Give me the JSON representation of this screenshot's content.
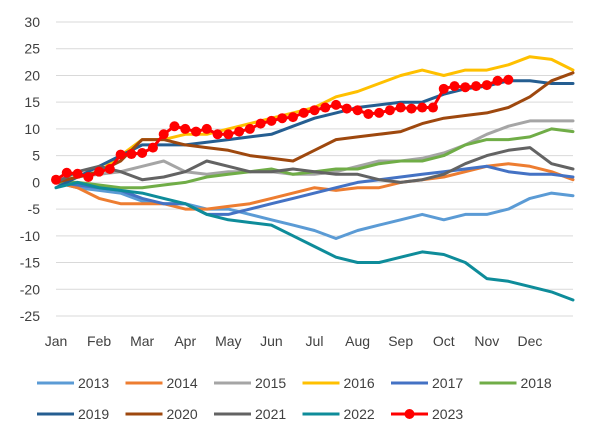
{
  "chart_data": {
    "type": "line",
    "title": "",
    "xlabel": "",
    "ylabel": "",
    "x_ticks": [
      "Jan",
      "Feb",
      "Mar",
      "Apr",
      "May",
      "Jun",
      "Jul",
      "Aug",
      "Sep",
      "Oct",
      "Nov",
      "Dec"
    ],
    "x_range": [
      0,
      12
    ],
    "ylim": [
      -25,
      30
    ],
    "y_ticks": [
      30,
      25,
      20,
      15,
      10,
      5,
      0,
      -5,
      -10,
      -15,
      -20,
      -25
    ],
    "grid": "horizontal",
    "legend_position": "bottom",
    "series": [
      {
        "name": "2013",
        "color": "#5B9BD5",
        "marker": false,
        "points": [
          [
            0,
            0
          ],
          [
            0.5,
            -1
          ],
          [
            1,
            -1.5
          ],
          [
            1.5,
            -2
          ],
          [
            2,
            -3.5
          ],
          [
            2.5,
            -4
          ],
          [
            3,
            -4
          ],
          [
            3.5,
            -5
          ],
          [
            4,
            -5
          ],
          [
            4.5,
            -6
          ],
          [
            5,
            -7
          ],
          [
            5.5,
            -8
          ],
          [
            6,
            -9
          ],
          [
            6.5,
            -10.5
          ],
          [
            7,
            -9
          ],
          [
            7.5,
            -8
          ],
          [
            8,
            -7
          ],
          [
            8.5,
            -6
          ],
          [
            9,
            -7
          ],
          [
            9.5,
            -6
          ],
          [
            10,
            -6
          ],
          [
            10.5,
            -5
          ],
          [
            11,
            -3
          ],
          [
            11.5,
            -2
          ],
          [
            12,
            -2.5
          ]
        ]
      },
      {
        "name": "2014",
        "color": "#ED7D31",
        "marker": false,
        "points": [
          [
            0,
            0
          ],
          [
            0.5,
            -1
          ],
          [
            1,
            -3
          ],
          [
            1.5,
            -4
          ],
          [
            2,
            -4
          ],
          [
            2.5,
            -4
          ],
          [
            3,
            -5
          ],
          [
            3.5,
            -5
          ],
          [
            4,
            -4.5
          ],
          [
            4.5,
            -4
          ],
          [
            5,
            -3
          ],
          [
            5.5,
            -2
          ],
          [
            6,
            -1
          ],
          [
            6.5,
            -1.5
          ],
          [
            7,
            -1
          ],
          [
            7.5,
            -1
          ],
          [
            8,
            0
          ],
          [
            8.5,
            0.5
          ],
          [
            9,
            1
          ],
          [
            9.5,
            2
          ],
          [
            10,
            3
          ],
          [
            10.5,
            3.5
          ],
          [
            11,
            3
          ],
          [
            11.5,
            2
          ],
          [
            12,
            0.5
          ]
        ]
      },
      {
        "name": "2015",
        "color": "#A5A5A5",
        "marker": false,
        "points": [
          [
            0,
            0
          ],
          [
            0.5,
            1
          ],
          [
            1,
            1.5
          ],
          [
            1.5,
            2
          ],
          [
            2,
            3
          ],
          [
            2.5,
            4
          ],
          [
            3,
            2
          ],
          [
            3.5,
            1.5
          ],
          [
            4,
            2
          ],
          [
            4.5,
            2
          ],
          [
            5,
            2
          ],
          [
            5.5,
            1.5
          ],
          [
            6,
            1.5
          ],
          [
            6.5,
            2
          ],
          [
            7,
            3
          ],
          [
            7.5,
            4
          ],
          [
            8,
            4
          ],
          [
            8.5,
            4.5
          ],
          [
            9,
            5.5
          ],
          [
            9.5,
            7
          ],
          [
            10,
            9
          ],
          [
            10.5,
            10.5
          ],
          [
            11,
            11.5
          ],
          [
            11.5,
            11.5
          ],
          [
            12,
            11.5
          ]
        ]
      },
      {
        "name": "2016",
        "color": "#FFC000",
        "marker": false,
        "points": [
          [
            0,
            0
          ],
          [
            0.5,
            1
          ],
          [
            1,
            2
          ],
          [
            1.5,
            5
          ],
          [
            2,
            8
          ],
          [
            2.5,
            8
          ],
          [
            3,
            9
          ],
          [
            3.5,
            9
          ],
          [
            4,
            10
          ],
          [
            4.5,
            11
          ],
          [
            5,
            12
          ],
          [
            5.5,
            13
          ],
          [
            6,
            14
          ],
          [
            6.5,
            16
          ],
          [
            7,
            17
          ],
          [
            7.5,
            18.5
          ],
          [
            8,
            20
          ],
          [
            8.5,
            21
          ],
          [
            9,
            20
          ],
          [
            9.5,
            21
          ],
          [
            10,
            21
          ],
          [
            10.5,
            22
          ],
          [
            11,
            23.5
          ],
          [
            11.5,
            23
          ],
          [
            12,
            21
          ]
        ]
      },
      {
        "name": "2017",
        "color": "#4472C4",
        "marker": false,
        "points": [
          [
            0,
            0
          ],
          [
            0.5,
            -0.5
          ],
          [
            1,
            -1
          ],
          [
            1.5,
            -1.5
          ],
          [
            2,
            -3
          ],
          [
            2.5,
            -4
          ],
          [
            3,
            -4
          ],
          [
            3.5,
            -6
          ],
          [
            4,
            -6
          ],
          [
            4.5,
            -5
          ],
          [
            5,
            -4
          ],
          [
            5.5,
            -3
          ],
          [
            6,
            -2
          ],
          [
            6.5,
            -1
          ],
          [
            7,
            0
          ],
          [
            7.5,
            0.5
          ],
          [
            8,
            1
          ],
          [
            8.5,
            1.5
          ],
          [
            9,
            2
          ],
          [
            9.5,
            2.5
          ],
          [
            10,
            3
          ],
          [
            10.5,
            2
          ],
          [
            11,
            1.5
          ],
          [
            11.5,
            1.5
          ],
          [
            12,
            1
          ]
        ]
      },
      {
        "name": "2018",
        "color": "#70AD47",
        "marker": false,
        "points": [
          [
            0,
            0
          ],
          [
            0.5,
            0
          ],
          [
            1,
            -0.5
          ],
          [
            1.5,
            -1
          ],
          [
            2,
            -1
          ],
          [
            2.5,
            -0.5
          ],
          [
            3,
            0
          ],
          [
            3.5,
            1
          ],
          [
            4,
            1.5
          ],
          [
            4.5,
            2
          ],
          [
            5,
            2.5
          ],
          [
            5.5,
            1.5
          ],
          [
            6,
            2
          ],
          [
            6.5,
            2.5
          ],
          [
            7,
            2.5
          ],
          [
            7.5,
            3.5
          ],
          [
            8,
            4
          ],
          [
            8.5,
            4
          ],
          [
            9,
            5
          ],
          [
            9.5,
            7
          ],
          [
            10,
            8
          ],
          [
            10.5,
            8
          ],
          [
            11,
            8.5
          ],
          [
            11.5,
            10
          ],
          [
            12,
            9.5
          ]
        ]
      },
      {
        "name": "2019",
        "color": "#255E91",
        "marker": false,
        "points": [
          [
            0,
            -1
          ],
          [
            0.5,
            1
          ],
          [
            1,
            3
          ],
          [
            1.5,
            5
          ],
          [
            2,
            7
          ],
          [
            2.5,
            7
          ],
          [
            3,
            7
          ],
          [
            3.5,
            7.5
          ],
          [
            4,
            8
          ],
          [
            4.5,
            8.5
          ],
          [
            5,
            9
          ],
          [
            5.5,
            10.5
          ],
          [
            6,
            12
          ],
          [
            6.5,
            13
          ],
          [
            7,
            14
          ],
          [
            7.5,
            14.5
          ],
          [
            8,
            15
          ],
          [
            8.5,
            15
          ],
          [
            9,
            16.5
          ],
          [
            9.5,
            17.5
          ],
          [
            10,
            18
          ],
          [
            10.5,
            19
          ],
          [
            11,
            19
          ],
          [
            11.5,
            18.5
          ],
          [
            12,
            18.5
          ]
        ]
      },
      {
        "name": "2020",
        "color": "#9E480E",
        "marker": false,
        "points": [
          [
            0,
            0
          ],
          [
            0.5,
            1
          ],
          [
            1,
            2
          ],
          [
            1.5,
            4
          ],
          [
            2,
            8
          ],
          [
            2.5,
            8
          ],
          [
            3,
            7
          ],
          [
            3.5,
            6.5
          ],
          [
            4,
            6
          ],
          [
            4.5,
            5
          ],
          [
            5,
            4.5
          ],
          [
            5.5,
            4
          ],
          [
            6,
            6
          ],
          [
            6.5,
            8
          ],
          [
            7,
            8.5
          ],
          [
            7.5,
            9
          ],
          [
            8,
            9.5
          ],
          [
            8.5,
            11
          ],
          [
            9,
            12
          ],
          [
            9.5,
            12.5
          ],
          [
            10,
            13
          ],
          [
            10.5,
            14
          ],
          [
            11,
            16
          ],
          [
            11.5,
            19
          ],
          [
            12,
            20.5
          ]
        ]
      },
      {
        "name": "2021",
        "color": "#636363",
        "marker": false,
        "points": [
          [
            0,
            0
          ],
          [
            0.5,
            2
          ],
          [
            1,
            3
          ],
          [
            1.5,
            2
          ],
          [
            2,
            0.5
          ],
          [
            2.5,
            1
          ],
          [
            3,
            2
          ],
          [
            3.5,
            4
          ],
          [
            4,
            3
          ],
          [
            4.5,
            2
          ],
          [
            5,
            2
          ],
          [
            5.5,
            2.5
          ],
          [
            6,
            2
          ],
          [
            6.5,
            1.5
          ],
          [
            7,
            1.5
          ],
          [
            7.5,
            0.5
          ],
          [
            8,
            0
          ],
          [
            8.5,
            0.5
          ],
          [
            9,
            1.5
          ],
          [
            9.5,
            3.5
          ],
          [
            10,
            5
          ],
          [
            10.5,
            6
          ],
          [
            11,
            6.5
          ],
          [
            11.5,
            3.5
          ],
          [
            12,
            2.5
          ]
        ]
      },
      {
        "name": "2022",
        "color": "#0E8C9A",
        "marker": false,
        "points": [
          [
            0,
            -1
          ],
          [
            0.5,
            0
          ],
          [
            1,
            -1
          ],
          [
            1.5,
            -1.5
          ],
          [
            2,
            -2
          ],
          [
            2.5,
            -3
          ],
          [
            3,
            -4
          ],
          [
            3.5,
            -6
          ],
          [
            4,
            -7
          ],
          [
            4.5,
            -7.5
          ],
          [
            5,
            -8
          ],
          [
            5.5,
            -10
          ],
          [
            6,
            -12
          ],
          [
            6.5,
            -14
          ],
          [
            7,
            -15
          ],
          [
            7.5,
            -15
          ],
          [
            8,
            -14
          ],
          [
            8.5,
            -13
          ],
          [
            9,
            -13.5
          ],
          [
            9.5,
            -15
          ],
          [
            10,
            -18
          ],
          [
            10.5,
            -18.5
          ],
          [
            11,
            -19.5
          ],
          [
            11.5,
            -20.5
          ],
          [
            12,
            -22
          ]
        ]
      },
      {
        "name": "2023",
        "color": "#FF0000",
        "marker": true,
        "points": [
          [
            0,
            0.5
          ],
          [
            0.25,
            1.8
          ],
          [
            0.5,
            1.6
          ],
          [
            0.75,
            1
          ],
          [
            1,
            2
          ],
          [
            1.25,
            2.5
          ],
          [
            1.5,
            5.2
          ],
          [
            1.75,
            5.3
          ],
          [
            2,
            5.5
          ],
          [
            2.25,
            6.5
          ],
          [
            2.5,
            9
          ],
          [
            2.75,
            10.5
          ],
          [
            3,
            10
          ],
          [
            3.25,
            9.5
          ],
          [
            3.5,
            10
          ],
          [
            3.75,
            9
          ],
          [
            4,
            9
          ],
          [
            4.25,
            9.5
          ],
          [
            4.5,
            10
          ],
          [
            4.75,
            11
          ],
          [
            5,
            11.5
          ],
          [
            5.25,
            12
          ],
          [
            5.5,
            12.2
          ],
          [
            5.75,
            13
          ],
          [
            6,
            13.5
          ],
          [
            6.25,
            14
          ],
          [
            6.5,
            14.5
          ],
          [
            6.75,
            13.8
          ],
          [
            7,
            13.5
          ],
          [
            7.25,
            12.8
          ],
          [
            7.5,
            13
          ],
          [
            7.75,
            13.5
          ],
          [
            8,
            14
          ],
          [
            8.25,
            13.8
          ],
          [
            8.5,
            14
          ],
          [
            8.75,
            14
          ],
          [
            9,
            17.5
          ],
          [
            9.25,
            18
          ],
          [
            9.5,
            17.8
          ],
          [
            9.75,
            18
          ],
          [
            10,
            18.2
          ],
          [
            10.25,
            19
          ],
          [
            10.5,
            19.2
          ]
        ]
      }
    ]
  }
}
